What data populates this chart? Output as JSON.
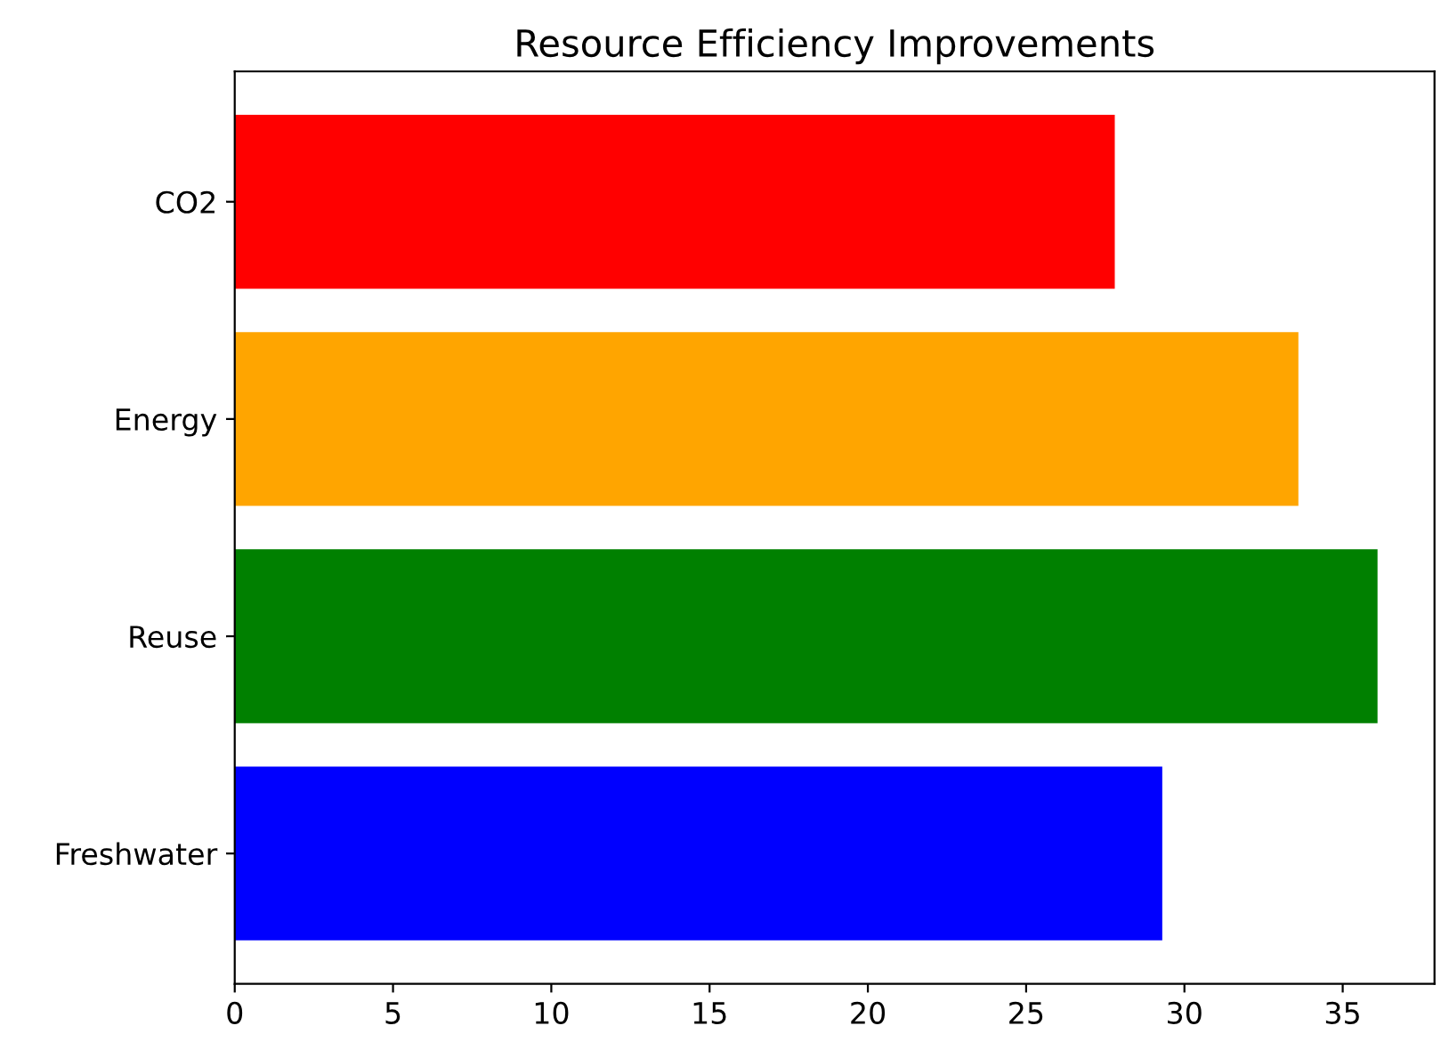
{
  "chart_data": {
    "type": "bar",
    "orientation": "horizontal",
    "title": "Resource Efficiency Improvements",
    "categories": [
      "CO2",
      "Energy",
      "Reuse",
      "Freshwater"
    ],
    "values": [
      27.8,
      33.6,
      36.1,
      29.3
    ],
    "colors": [
      "#ff0000",
      "#ffa500",
      "#008000",
      "#0000ff"
    ],
    "xlim": [
      0,
      37.9
    ],
    "xticks": [
      0,
      5,
      10,
      15,
      20,
      25,
      30,
      35
    ],
    "grid": false,
    "legend": false
  }
}
